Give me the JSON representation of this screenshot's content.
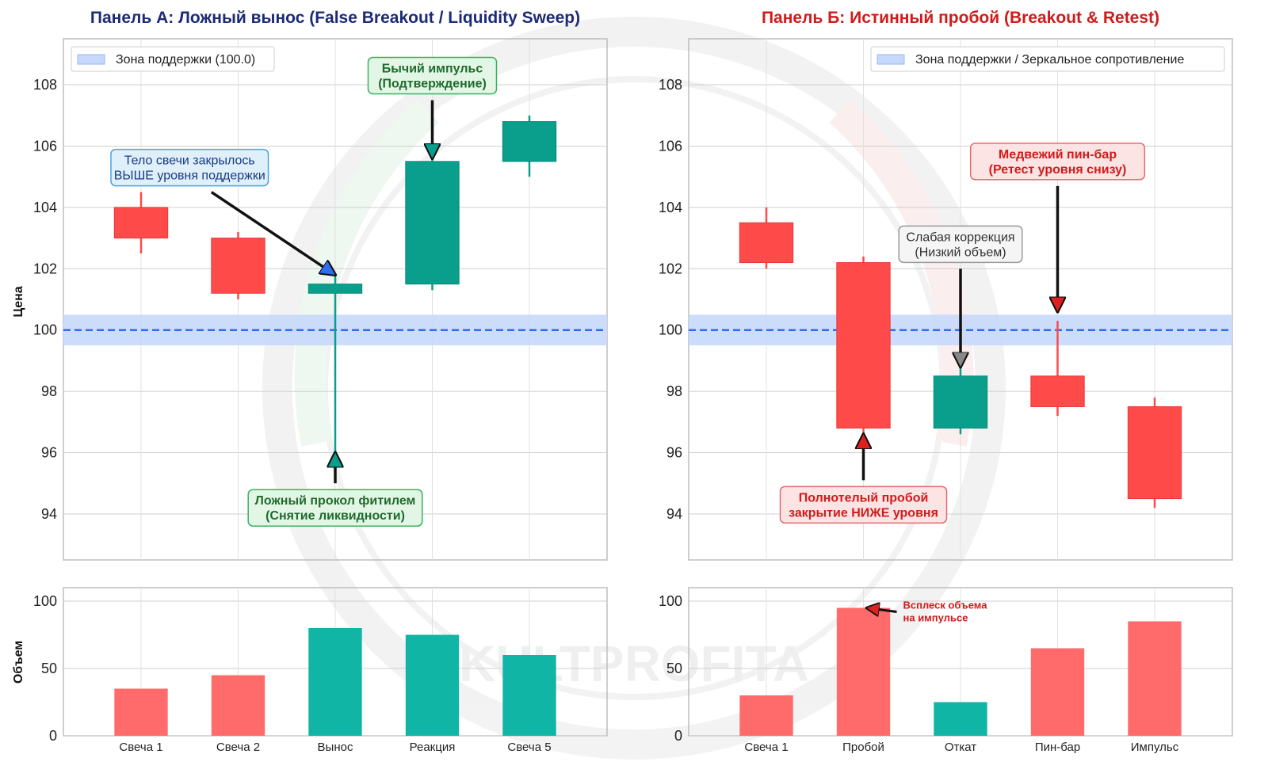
{
  "watermark": "KULTPROFITA",
  "colors": {
    "bull": "#0a9e8c",
    "bear": "#ff4a4a",
    "bull_vol": "#11b5a5",
    "bear_vol": "#ff6b6b",
    "zone": "#c6d8fb",
    "zone_line": "#2f6df0",
    "green_box_fill": "#e3f6e6",
    "green_box_edge": "#38b25c",
    "green_text": "#1e6b2c",
    "blue_box_fill": "#dff0fb",
    "blue_box_edge": "#49a4e0",
    "blue_text": "#1a3b86",
    "red_box_fill": "#fde4e4",
    "red_box_edge": "#e46a6a",
    "red_text": "#d11a1a",
    "gray_box_fill": "#f5f5f5",
    "gray_box_edge": "#999999",
    "title_a": "#1c2a78",
    "title_b": "#d11a1a"
  },
  "chart_data": [
    {
      "type": "candlestick",
      "panel": "A",
      "title": "Панель А: Ложный вынос (False Breakout / Liquidity Sweep)",
      "ylabel": "Цена",
      "ylim": [
        92.5,
        109.5
      ],
      "yticks": [
        94,
        96,
        98,
        100,
        102,
        104,
        106,
        108
      ],
      "support_level": 100,
      "support_zone": [
        99.5,
        100.5
      ],
      "legend": "Зона поддержки (100.0)",
      "legend_position": "top-left",
      "categories": [
        "Свеча 1",
        "Свеча 2",
        "Вынос",
        "Реакция",
        "Свеча 5"
      ],
      "candles": [
        {
          "open": 104.0,
          "high": 104.5,
          "low": 102.5,
          "close": 103.0
        },
        {
          "open": 103.0,
          "high": 103.2,
          "low": 101.0,
          "close": 101.2
        },
        {
          "open": 101.2,
          "high": 101.8,
          "low": 96.0,
          "close": 101.5
        },
        {
          "open": 101.5,
          "high": 105.7,
          "low": 101.3,
          "close": 105.5
        },
        {
          "open": 105.5,
          "high": 107.0,
          "low": 105.0,
          "close": 106.8
        }
      ],
      "annotations": [
        {
          "text1": "Тело свечи закрылось",
          "text2": "ВЫШЕ уровня поддержки",
          "style": "blue",
          "target_x": 2,
          "target_y": 101.8,
          "text_x": 0.5,
          "text_y": 105.3
        },
        {
          "text1": "Бычий импульс",
          "text2": "(Подтверждение)",
          "style": "green",
          "target_x": 3,
          "target_y": 105.6,
          "text_x": 3,
          "text_y": 108.3
        },
        {
          "text1": "Ложный прокол фитилем",
          "text2": "(Снятие ликвидности)",
          "style": "green",
          "target_x": 2,
          "target_y": 96.0,
          "text_x": 2,
          "text_y": 94.2
        }
      ],
      "volume": {
        "ylim": [
          0,
          110
        ],
        "yticks": [
          0,
          50,
          100
        ],
        "ylabel": "Объем",
        "values": [
          35,
          45,
          80,
          75,
          60
        ],
        "directions": [
          "bear",
          "bear",
          "bull",
          "bull",
          "bull"
        ]
      }
    },
    {
      "type": "candlestick",
      "panel": "B",
      "title": "Панель Б: Истинный пробой (Breakout & Retest)",
      "ylim": [
        92.5,
        109.5
      ],
      "yticks": [
        94,
        96,
        98,
        100,
        102,
        104,
        106,
        108
      ],
      "support_level": 100,
      "support_zone": [
        99.5,
        100.5
      ],
      "legend": "Зона поддержки / Зеркальное сопротивление",
      "legend_position": "top-right",
      "categories": [
        "Свеча 1",
        "Пробой",
        "Откат",
        "Пин-бар",
        "Импульс"
      ],
      "candles": [
        {
          "open": 103.5,
          "high": 104.0,
          "low": 102.0,
          "close": 102.2
        },
        {
          "open": 102.2,
          "high": 102.4,
          "low": 96.5,
          "close": 96.8
        },
        {
          "open": 96.8,
          "high": 98.8,
          "low": 96.6,
          "close": 98.5
        },
        {
          "open": 98.5,
          "high": 100.3,
          "low": 97.2,
          "close": 97.5
        },
        {
          "open": 97.5,
          "high": 97.8,
          "low": 94.2,
          "close": 94.5
        }
      ],
      "annotations": [
        {
          "text1": "Слабая коррекция",
          "text2": "(Низкий объем)",
          "style": "gray",
          "target_x": 2,
          "target_y": 98.8,
          "text_x": 2,
          "text_y": 102.8
        },
        {
          "text1": "Медвежий пин-бар",
          "text2": "(Ретест уровня снизу)",
          "style": "red",
          "target_x": 3,
          "target_y": 100.6,
          "text_x": 3,
          "text_y": 105.5
        },
        {
          "text1": "Полнотелый пробой",
          "text2": "закрытие НИЖЕ уровня",
          "style": "red",
          "target_x": 1,
          "target_y": 96.6,
          "text_x": 1,
          "text_y": 94.3
        }
      ],
      "volume": {
        "ylim": [
          0,
          110
        ],
        "yticks": [
          0,
          50,
          100
        ],
        "values": [
          30,
          95,
          25,
          65,
          85
        ],
        "directions": [
          "bear",
          "bear",
          "bull",
          "bear",
          "bear"
        ],
        "annotation": {
          "text1": "Всплеск объема",
          "text2": "на импульсе",
          "target_x": 1,
          "target_y": 95
        }
      }
    }
  ]
}
